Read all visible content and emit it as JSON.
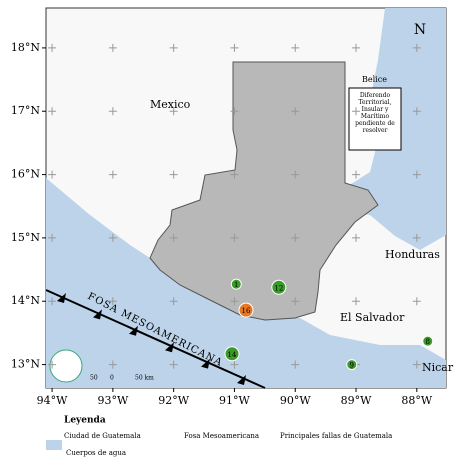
{
  "map": {
    "lonlim": [
      -94.1,
      -87.52
    ],
    "latlim": [
      12.63,
      18.63
    ],
    "lon_ticks": [
      {
        "value": -94,
        "label": "94°W"
      },
      {
        "value": -93,
        "label": "93°W"
      },
      {
        "value": -92,
        "label": "92°W"
      },
      {
        "value": -91,
        "label": "91°W"
      },
      {
        "value": -90,
        "label": "90°W"
      },
      {
        "value": -89,
        "label": "89°W"
      },
      {
        "value": -88,
        "label": "88°W"
      }
    ],
    "lat_ticks": [
      {
        "value": 13,
        "label": "13°N"
      },
      {
        "value": 14,
        "label": "14°N"
      },
      {
        "value": 15,
        "label": "15°N"
      },
      {
        "value": 16,
        "label": "16°N"
      },
      {
        "value": 17,
        "label": "17°N"
      },
      {
        "value": 18,
        "label": "18°N"
      }
    ],
    "labels": {
      "mexico": "Mexico",
      "belice": "Belice",
      "diferendo": "Diferendo Territorial, Insular y Marítimo pendiente de resolver",
      "honduras": "Honduras",
      "el_salvador": "El Salvador",
      "nicaragua": "Nicar",
      "fosa": "FOSA MESOAMERICANA",
      "north": "N"
    },
    "markers": [
      {
        "label": "16",
        "lon": -90.81,
        "lat": 13.86,
        "color": "#e87722"
      },
      {
        "label": "14",
        "lon": -91.04,
        "lat": 13.17,
        "color": "#3a9a2a"
      },
      {
        "label": "9",
        "lon": -89.07,
        "lat": 13.0,
        "color": "#3a9a2a"
      },
      {
        "label": "8",
        "lon": -87.82,
        "lat": 13.37,
        "color": "#3a9a2a"
      },
      {
        "label": "1",
        "lon": -90.97,
        "lat": 14.27,
        "color": "#3a9a2a"
      },
      {
        "label": "12",
        "lon": -90.27,
        "lat": 14.22,
        "color": "#3a9a2a"
      }
    ],
    "scale": {
      "left": "50",
      "mid": "0",
      "right": "50 km"
    },
    "legend": {
      "title": "Leyenda",
      "items": [
        "Ciudad de Guatemala",
        "Fosa Mesoamericana",
        "Principales fallas de Guatemala",
        "Cuerpos de agua"
      ]
    }
  }
}
